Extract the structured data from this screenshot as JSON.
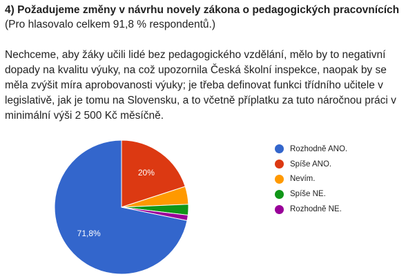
{
  "question": {
    "title": "4) Požadujeme změny v návrhu novely zákona o pedagogických pracovnících",
    "note": "(Pro hlasovalo celkem 91,8 % respondentů.)"
  },
  "body_text": "Nechceme, aby žáky učili lidé bez pedagogického vzdělání, mělo by to negativní dopady na kvalitu výuky, na což upozornila Česká školní inspekce, naopak by se měla zvýšit míra aprobovanosti výuky; je třeba definovat funkci třídního učitele v legislativě, jak je tomu na Slovensku, a to včetně příplatku za tuto náročnou práci v minimální výši 2 500 Kč měsíčně.",
  "chart_data": {
    "type": "pie",
    "legend_position": "right",
    "slices": [
      {
        "label": "Rozhodně ANO.",
        "value": 71.8,
        "value_label": "71,8%",
        "color": "#3366cc"
      },
      {
        "label": "Spíše ANO.",
        "value": 20.0,
        "value_label": "20%",
        "color": "#dc3912"
      },
      {
        "label": "Nevím.",
        "value": 4.3,
        "value_label": "",
        "color": "#ff9900"
      },
      {
        "label": "Spíše NE.",
        "value": 2.6,
        "value_label": "",
        "color": "#109618"
      },
      {
        "label": "Rozhodně NE.",
        "value": 1.3,
        "value_label": "",
        "color": "#990099"
      }
    ]
  }
}
